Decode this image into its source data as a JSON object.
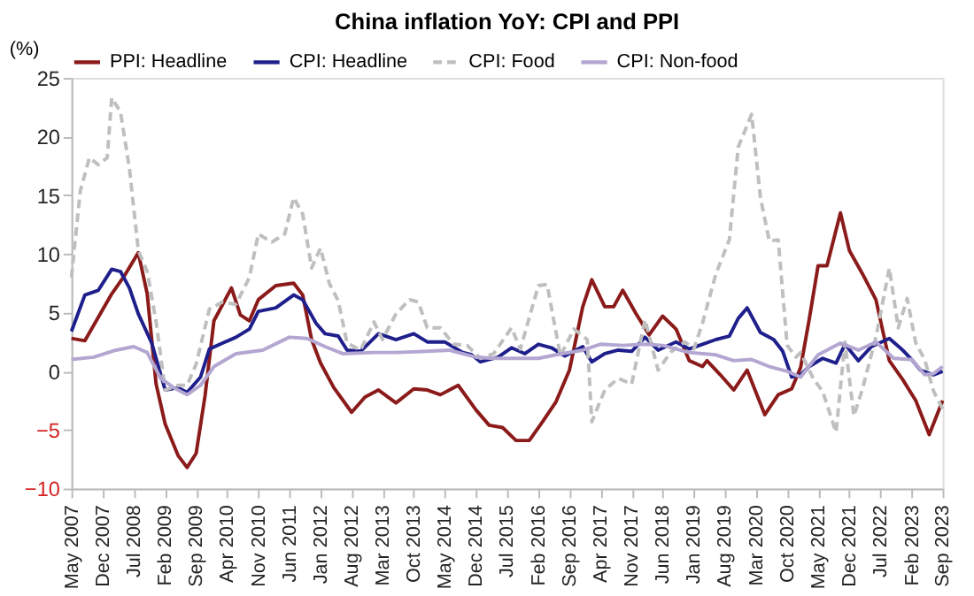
{
  "chart_data": {
    "type": "line",
    "title": "China inflation YoY: CPI and PPI",
    "ylabel": "(%)",
    "xlim": [
      "2007-05",
      "2023-09"
    ],
    "ylim": [
      -10,
      25
    ],
    "yticks": [
      -10,
      -5,
      0,
      5,
      10,
      15,
      20,
      25
    ],
    "xticks": [
      {
        "value": "2007-05",
        "label": "May 2007"
      },
      {
        "value": "2007-12",
        "label": "Dec 2007"
      },
      {
        "value": "2008-07",
        "label": "Jul 2008"
      },
      {
        "value": "2009-02",
        "label": "Feb 2009"
      },
      {
        "value": "2009-09",
        "label": "Sep 2009"
      },
      {
        "value": "2010-04",
        "label": "Apr 2010"
      },
      {
        "value": "2010-11",
        "label": "Nov 2010"
      },
      {
        "value": "2011-06",
        "label": "Jun 2011"
      },
      {
        "value": "2012-01",
        "label": "Jan 2012"
      },
      {
        "value": "2012-08",
        "label": "Aug 2012"
      },
      {
        "value": "2013-03",
        "label": "Mar 2013"
      },
      {
        "value": "2013-10",
        "label": "Oct 2013"
      },
      {
        "value": "2014-05",
        "label": "May 2014"
      },
      {
        "value": "2014-12",
        "label": "Dec 2014"
      },
      {
        "value": "2015-07",
        "label": "Jul 2015"
      },
      {
        "value": "2016-02",
        "label": "Feb 2016"
      },
      {
        "value": "2016-09",
        "label": "Sep 2016"
      },
      {
        "value": "2017-04",
        "label": "Apr 2017"
      },
      {
        "value": "2017-11",
        "label": "Nov 2017"
      },
      {
        "value": "2018-06",
        "label": "Jun 2018"
      },
      {
        "value": "2019-01",
        "label": "Jan 2019"
      },
      {
        "value": "2019-08",
        "label": "Aug 2019"
      },
      {
        "value": "2020-03",
        "label": "Mar 2020"
      },
      {
        "value": "2020-10",
        "label": "Oct 2020"
      },
      {
        "value": "2021-05",
        "label": "May 2021"
      },
      {
        "value": "2021-12",
        "label": "Dec 2021"
      },
      {
        "value": "2022-07",
        "label": "Jul 2022"
      },
      {
        "value": "2023-02",
        "label": "Feb 2023"
      },
      {
        "value": "2023-09",
        "label": "Sep 2023"
      }
    ],
    "grid": false,
    "legend": "top",
    "marker": "none",
    "series": [
      {
        "name": "PPI: Headline",
        "color": "#8b1a1a",
        "line_style": "solid",
        "x": [
          "2007-05",
          "2007-08",
          "2007-11",
          "2008-02",
          "2008-05",
          "2008-08",
          "2008-10",
          "2008-12",
          "2009-02",
          "2009-05",
          "2009-07",
          "2009-09",
          "2009-11",
          "2010-01",
          "2010-05",
          "2010-07",
          "2010-09",
          "2010-11",
          "2011-03",
          "2011-07",
          "2011-09",
          "2011-11",
          "2012-01",
          "2012-04",
          "2012-08",
          "2012-11",
          "2013-02",
          "2013-06",
          "2013-10",
          "2014-01",
          "2014-04",
          "2014-08",
          "2014-12",
          "2015-03",
          "2015-06",
          "2015-09",
          "2015-12",
          "2016-03",
          "2016-06",
          "2016-09",
          "2016-12",
          "2017-02",
          "2017-05",
          "2017-07",
          "2017-09",
          "2017-12",
          "2018-03",
          "2018-06",
          "2018-09",
          "2018-12",
          "2019-03",
          "2019-04",
          "2019-07",
          "2019-10",
          "2020-01",
          "2020-05",
          "2020-08",
          "2020-11",
          "2021-01",
          "2021-03",
          "2021-05",
          "2021-07",
          "2021-10",
          "2021-12",
          "2022-03",
          "2022-06",
          "2022-09",
          "2022-12",
          "2023-03",
          "2023-06",
          "2023-09"
        ],
        "values": [
          2.8,
          2.6,
          4.6,
          6.6,
          8.2,
          10.1,
          6.6,
          -1.1,
          -4.5,
          -7.2,
          -8.2,
          -7.0,
          -2.1,
          4.3,
          7.1,
          4.8,
          4.3,
          6.1,
          7.3,
          7.5,
          6.5,
          2.7,
          0.7,
          -1.4,
          -3.5,
          -2.2,
          -1.6,
          -2.7,
          -1.5,
          -1.6,
          -2.0,
          -1.2,
          -3.3,
          -4.6,
          -4.8,
          -5.9,
          -5.9,
          -4.3,
          -2.6,
          0.1,
          5.5,
          7.8,
          5.5,
          5.5,
          6.9,
          4.9,
          3.1,
          4.7,
          3.6,
          0.9,
          0.4,
          0.9,
          -0.3,
          -1.6,
          0.1,
          -3.7,
          -2.0,
          -1.5,
          0.3,
          4.4,
          9.0,
          9.0,
          13.5,
          10.3,
          8.3,
          6.1,
          0.9,
          -0.7,
          -2.5,
          -5.4,
          -2.5
        ]
      },
      {
        "name": "CPI: Headline",
        "color": "#1f1f8c",
        "line_style": "solid",
        "x": [
          "2007-05",
          "2007-08",
          "2007-11",
          "2008-02",
          "2008-04",
          "2008-06",
          "2008-08",
          "2008-11",
          "2009-02",
          "2009-05",
          "2009-07",
          "2009-10",
          "2009-12",
          "2010-03",
          "2010-06",
          "2010-09",
          "2010-11",
          "2011-03",
          "2011-07",
          "2011-09",
          "2011-12",
          "2012-02",
          "2012-05",
          "2012-07",
          "2012-10",
          "2013-02",
          "2013-06",
          "2013-10",
          "2014-01",
          "2014-05",
          "2014-09",
          "2014-11",
          "2015-01",
          "2015-05",
          "2015-08",
          "2015-11",
          "2016-02",
          "2016-05",
          "2016-08",
          "2016-12",
          "2017-02",
          "2017-05",
          "2017-08",
          "2017-11",
          "2018-02",
          "2018-05",
          "2018-09",
          "2018-12",
          "2019-03",
          "2019-06",
          "2019-09",
          "2019-11",
          "2020-01",
          "2020-04",
          "2020-07",
          "2020-09",
          "2020-11",
          "2021-01",
          "2021-03",
          "2021-06",
          "2021-09",
          "2021-11",
          "2022-02",
          "2022-05",
          "2022-09",
          "2022-12",
          "2023-02",
          "2023-04",
          "2023-07",
          "2023-09"
        ],
        "values": [
          3.4,
          6.5,
          6.9,
          8.7,
          8.5,
          7.1,
          4.9,
          2.4,
          -1.6,
          -1.4,
          -1.8,
          -0.5,
          1.9,
          2.4,
          2.9,
          3.6,
          5.1,
          5.4,
          6.5,
          6.1,
          4.1,
          3.2,
          3.0,
          1.8,
          1.7,
          3.2,
          2.7,
          3.2,
          2.5,
          2.5,
          1.6,
          1.4,
          0.8,
          1.2,
          2.0,
          1.5,
          2.3,
          2.0,
          1.3,
          2.1,
          0.8,
          1.5,
          1.8,
          1.7,
          2.9,
          1.8,
          2.5,
          1.9,
          2.3,
          2.7,
          3.0,
          4.5,
          5.4,
          3.3,
          2.7,
          1.7,
          -0.5,
          -0.3,
          0.4,
          1.1,
          0.7,
          2.3,
          0.9,
          2.1,
          2.8,
          1.8,
          1.0,
          0.1,
          -0.3,
          0.0
        ]
      },
      {
        "name": "CPI: Food",
        "color": "#bfbfbf",
        "line_style": "dashed",
        "x": [
          "2007-05",
          "2007-07",
          "2007-09",
          "2007-11",
          "2008-01",
          "2008-02",
          "2008-04",
          "2008-06",
          "2008-08",
          "2008-10",
          "2008-12",
          "2009-02",
          "2009-05",
          "2009-07",
          "2009-09",
          "2009-12",
          "2010-03",
          "2010-06",
          "2010-09",
          "2010-11",
          "2011-02",
          "2011-05",
          "2011-07",
          "2011-09",
          "2011-11",
          "2012-01",
          "2012-03",
          "2012-05",
          "2012-07",
          "2012-10",
          "2013-01",
          "2013-03",
          "2013-06",
          "2013-09",
          "2013-11",
          "2014-01",
          "2014-04",
          "2014-07",
          "2014-10",
          "2015-01",
          "2015-04",
          "2015-08",
          "2015-10",
          "2016-02",
          "2016-04",
          "2016-07",
          "2016-10",
          "2017-01",
          "2017-02",
          "2017-05",
          "2017-08",
          "2017-11",
          "2018-02",
          "2018-05",
          "2018-08",
          "2018-11",
          "2019-01",
          "2019-03",
          "2019-06",
          "2019-09",
          "2019-11",
          "2020-02",
          "2020-04",
          "2020-06",
          "2020-08",
          "2020-10",
          "2020-12",
          "2021-01",
          "2021-04",
          "2021-06",
          "2021-09",
          "2021-11",
          "2022-01",
          "2022-03",
          "2022-06",
          "2022-09",
          "2022-11",
          "2023-01",
          "2023-03",
          "2023-05",
          "2023-07",
          "2023-09"
        ],
        "values": [
          8.0,
          15.4,
          18.2,
          17.6,
          18.2,
          23.3,
          22.1,
          17.3,
          10.3,
          8.5,
          4.2,
          -1.6,
          -1.2,
          -1.2,
          0.6,
          5.3,
          5.9,
          5.7,
          8.0,
          11.7,
          11.0,
          11.7,
          14.8,
          13.4,
          8.8,
          10.5,
          7.5,
          6.0,
          2.4,
          1.8,
          4.2,
          2.7,
          4.9,
          6.1,
          5.9,
          3.7,
          3.7,
          2.3,
          2.2,
          1.1,
          1.5,
          3.7,
          1.9,
          7.3,
          7.4,
          1.3,
          3.6,
          2.7,
          -4.3,
          -1.6,
          -0.6,
          -1.1,
          4.4,
          0.1,
          1.7,
          2.5,
          1.9,
          4.1,
          8.3,
          11.2,
          19.1,
          21.9,
          14.8,
          11.1,
          11.2,
          2.2,
          1.2,
          1.6,
          -0.7,
          -1.7,
          -5.2,
          2.5,
          -3.8,
          -1.5,
          2.9,
          8.8,
          3.7,
          6.2,
          2.4,
          1.0,
          -1.7,
          -3.2
        ]
      },
      {
        "name": "CPI: Non-food",
        "color": "#b3a6d1",
        "line_style": "solid",
        "x": [
          "2007-05",
          "2007-10",
          "2008-03",
          "2008-07",
          "2008-10",
          "2009-01",
          "2009-04",
          "2009-07",
          "2009-10",
          "2010-01",
          "2010-06",
          "2010-12",
          "2011-06",
          "2011-10",
          "2012-02",
          "2012-06",
          "2013-01",
          "2013-06",
          "2014-01",
          "2014-06",
          "2014-12",
          "2015-04",
          "2015-09",
          "2016-02",
          "2016-06",
          "2016-12",
          "2017-04",
          "2017-09",
          "2018-02",
          "2018-06",
          "2018-12",
          "2019-06",
          "2019-10",
          "2020-02",
          "2020-06",
          "2020-10",
          "2021-01",
          "2021-05",
          "2021-10",
          "2022-02",
          "2022-06",
          "2022-10",
          "2023-02",
          "2023-05",
          "2023-07",
          "2023-09"
        ],
        "values": [
          1.0,
          1.2,
          1.8,
          2.1,
          1.6,
          -0.6,
          -1.4,
          -2.0,
          -1.2,
          0.4,
          1.5,
          1.8,
          2.9,
          2.8,
          2.1,
          1.5,
          1.6,
          1.6,
          1.7,
          1.8,
          1.2,
          1.1,
          1.1,
          1.1,
          1.4,
          1.8,
          2.3,
          2.2,
          2.3,
          2.2,
          1.6,
          1.4,
          0.9,
          1.0,
          0.4,
          0.0,
          -0.5,
          1.4,
          2.4,
          1.8,
          2.5,
          1.1,
          1.0,
          -0.3,
          -0.2,
          0.4
        ]
      }
    ]
  }
}
